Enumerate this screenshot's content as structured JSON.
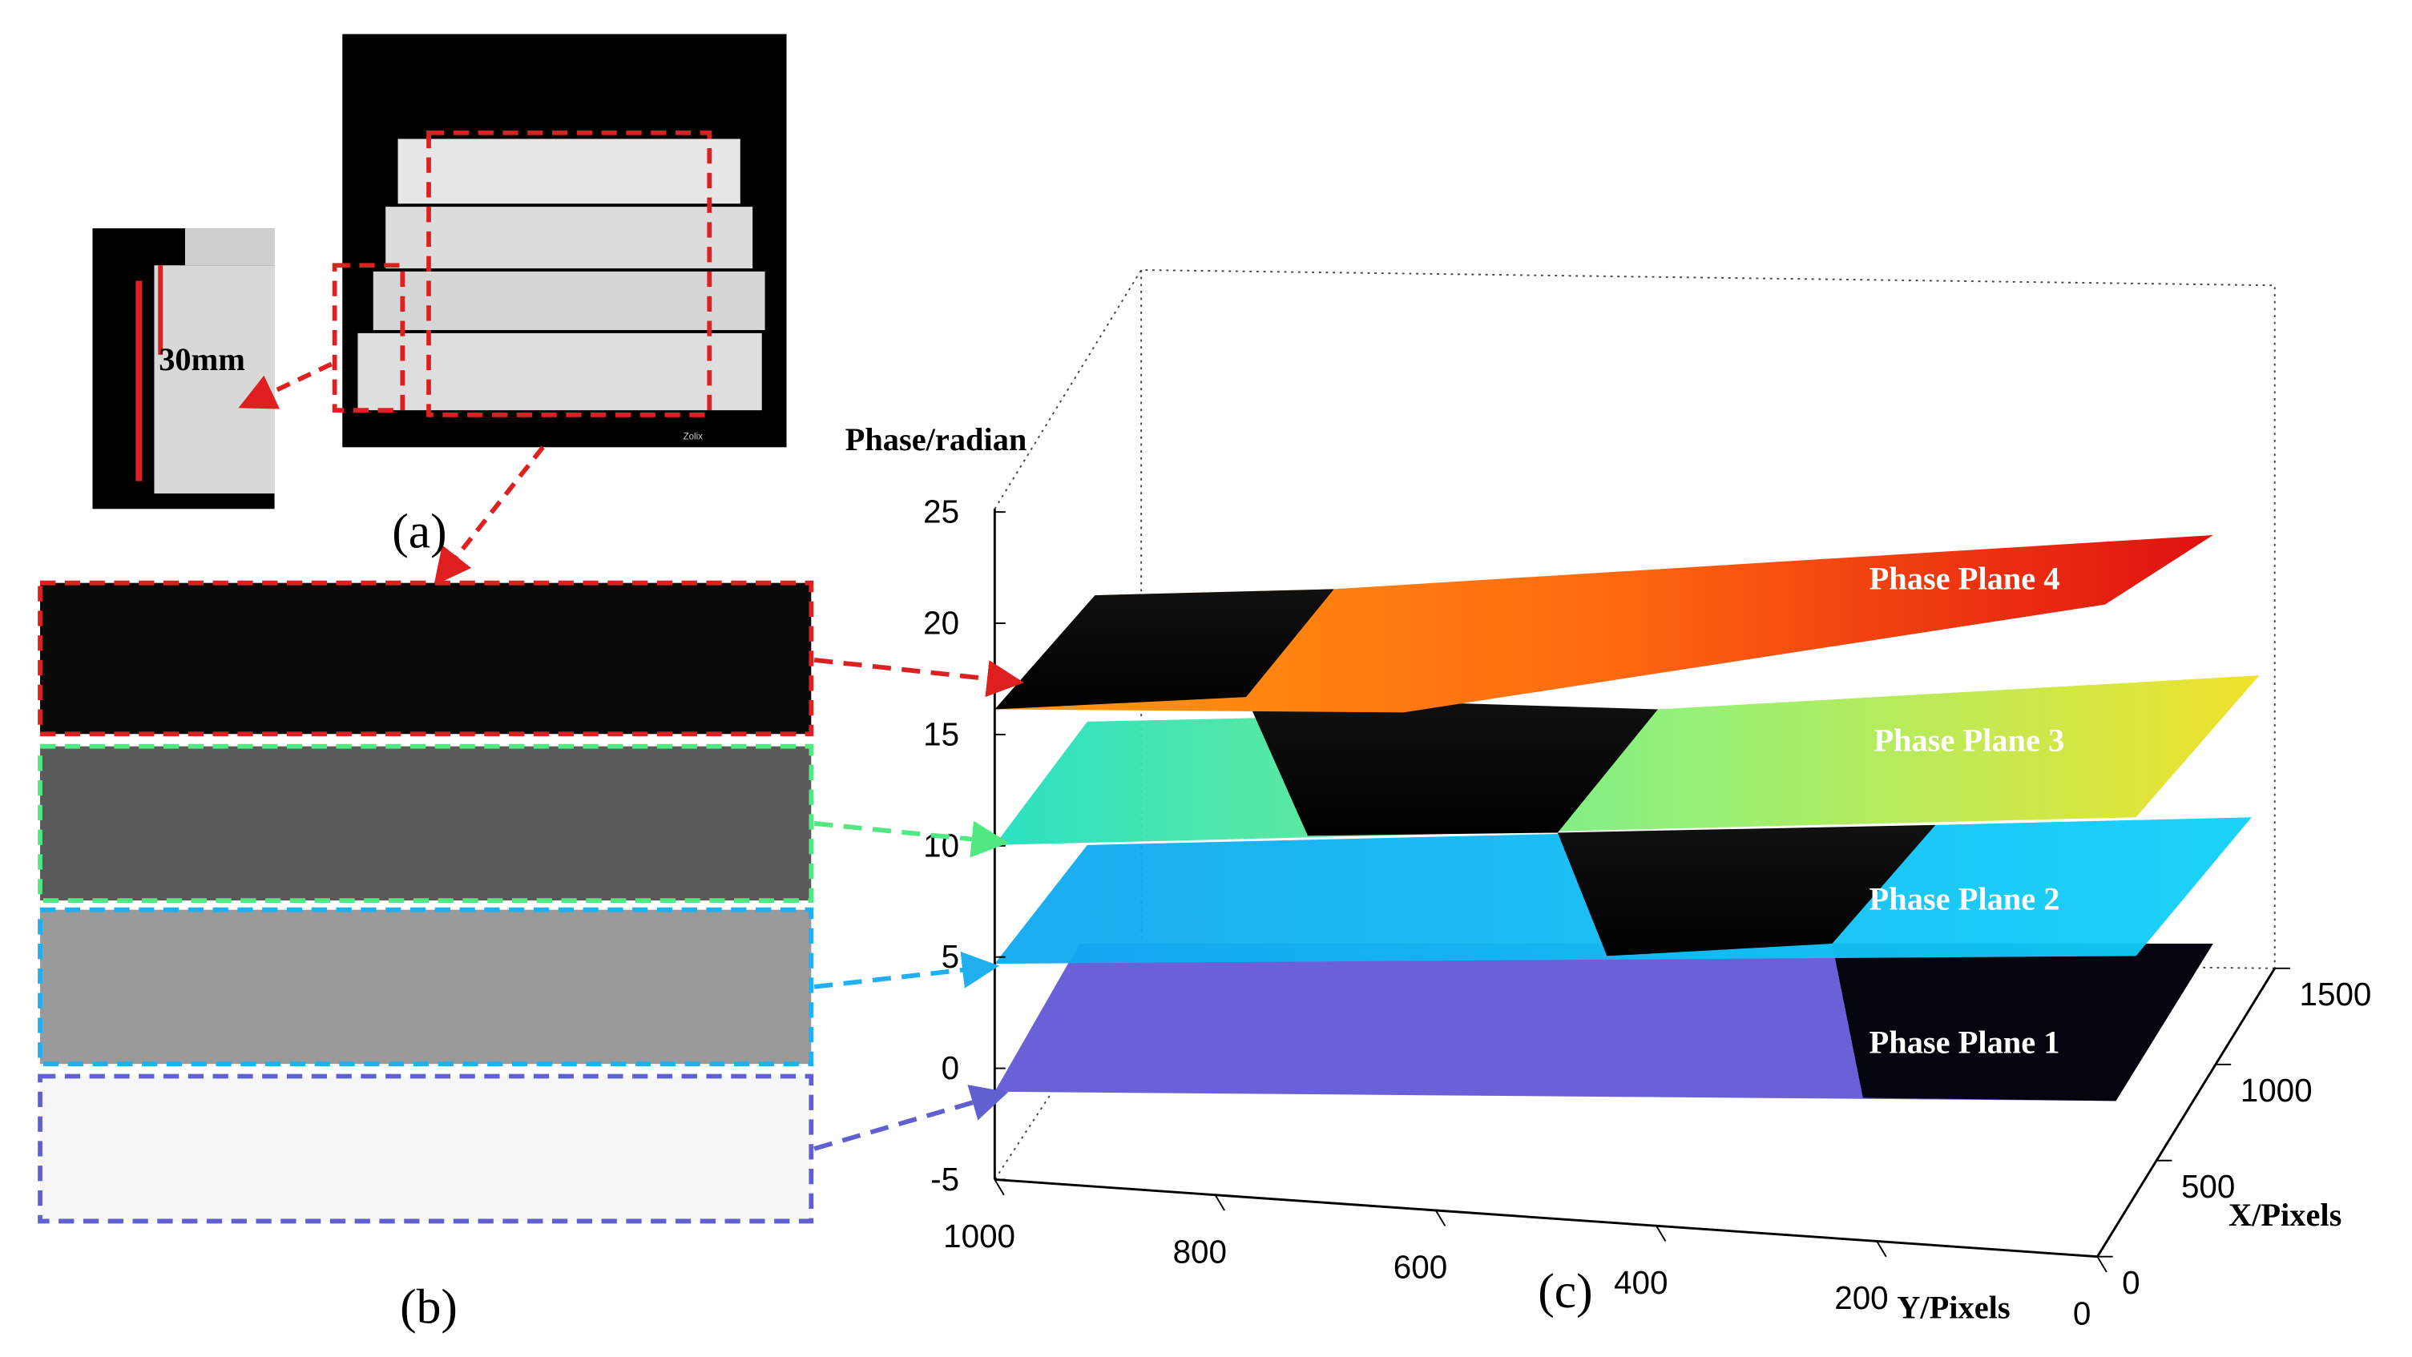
{
  "panel_labels": [
    "(a)",
    "(b)",
    "(c)"
  ],
  "photo": {
    "scale_label": "30mm",
    "brand": "Zolix"
  },
  "plot": {
    "z_title": "Phase/radian",
    "x_title": "X/Pixels",
    "y_title": "Y/Pixels",
    "z_ticks": [
      "25",
      "20",
      "15",
      "10",
      "5",
      "0",
      "-5"
    ],
    "y_ticks": [
      "1000",
      "800",
      "600",
      "400",
      "200",
      "0"
    ],
    "x_ticks": [
      "1500",
      "1000",
      "500",
      "0"
    ],
    "planes": [
      "Phase Plane 1",
      "Phase  Plane 2",
      "Phase  Plane 3",
      "Phase Plane 4"
    ]
  }
}
